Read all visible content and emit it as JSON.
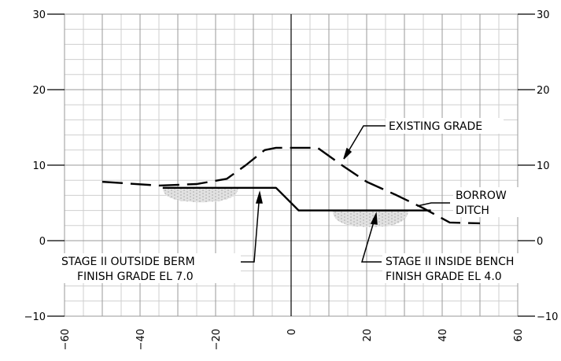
{
  "chart_data": {
    "type": "line",
    "title": "",
    "xlabel": "",
    "ylabel": "",
    "xlim": [
      -60,
      60
    ],
    "ylim": [
      -10,
      30
    ],
    "grid": true,
    "x_ticks": [
      -60,
      -40,
      -20,
      0,
      20,
      40,
      60
    ],
    "y_ticks": [
      -10,
      0,
      10,
      20,
      30
    ],
    "y_tick_labels_left": [
      "−10",
      "0",
      "10",
      "20",
      "30"
    ],
    "y_tick_labels_right": [
      "−10",
      "0",
      "10",
      "20",
      "30"
    ],
    "series": [
      {
        "line_style": "dashed",
        "points": [
          [
            -50,
            7.8
          ],
          [
            -35,
            7.3
          ],
          [
            -25,
            7.5
          ],
          [
            -17,
            8.2
          ],
          [
            -12,
            10.0
          ],
          [
            -7,
            12.0
          ],
          [
            -4,
            12.3
          ],
          [
            7,
            12.3
          ],
          [
            14,
            9.8
          ],
          [
            20,
            7.8
          ],
          [
            28,
            6.0
          ],
          [
            35,
            4.3
          ],
          [
            42,
            2.4
          ],
          [
            50,
            2.3
          ]
        ]
      },
      {
        "line_style": "solid",
        "points": [
          [
            -34,
            7.0
          ],
          [
            -4,
            7.0
          ],
          [
            2,
            4.0
          ],
          [
            37,
            4.0
          ]
        ]
      }
    ],
    "hatched_areas": [
      {
        "x_from": -34,
        "x_to": -14,
        "top": 7.0,
        "bottom": 5.3
      },
      {
        "x_from": 11,
        "x_to": 31,
        "top": 4.0,
        "bottom": 2.0
      }
    ]
  },
  "annotations": {
    "existing_grade": "EXISTING  GRADE",
    "borrow_ditch_line1": "BORROW",
    "borrow_ditch_line2": "DITCH",
    "outside_berm_line1": "STAGE  II  OUTSIDE  BERM",
    "outside_berm_line2": "FINISH  GRADE  EL  7.0",
    "inside_bench_line1": "STAGE  II  INSIDE  BENCH",
    "inside_bench_line2": "FINISH  GRADE  EL  4.0"
  }
}
